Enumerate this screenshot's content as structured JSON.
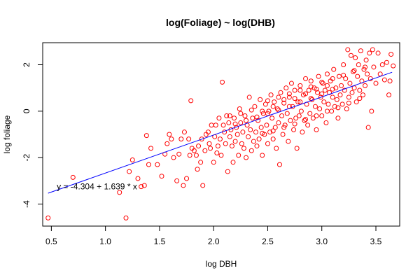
{
  "chart_data": {
    "type": "scatter",
    "title": "log(Foliage) ~ log(DHB)",
    "xlabel": "log DBH",
    "ylabel": "log foliage",
    "xlim": [
      0.42,
      3.72
    ],
    "ylim": [
      -4.95,
      2.95
    ],
    "x_ticks": [
      0.5,
      1.0,
      1.5,
      2.0,
      2.5,
      3.0,
      3.5
    ],
    "x_tick_labels": [
      "0.5",
      "1.0",
      "1.5",
      "2.0",
      "2.5",
      "3.0",
      "3.5"
    ],
    "y_ticks": [
      -4,
      -2,
      0,
      2
    ],
    "y_tick_labels": [
      "-4",
      "-2",
      "0",
      "2"
    ],
    "grid": false,
    "point_color": "#ff0000",
    "line_color": "#0000ff",
    "regression": {
      "intercept": -4.304,
      "slope": 1.639,
      "x_range": [
        0.47,
        3.65
      ],
      "label": "y = -4.304 + 1.639 * x",
      "label_at": [
        0.55,
        -3.25
      ]
    },
    "points": [
      [
        0.47,
        -4.6
      ],
      [
        0.7,
        -2.85
      ],
      [
        1.13,
        -3.5
      ],
      [
        1.19,
        -4.6
      ],
      [
        1.22,
        -2.6
      ],
      [
        1.25,
        -2.1
      ],
      [
        1.3,
        -2.9
      ],
      [
        1.33,
        -3.25
      ],
      [
        1.36,
        -3.2
      ],
      [
        1.38,
        -1.05
      ],
      [
        1.4,
        -2.3
      ],
      [
        1.42,
        -1.6
      ],
      [
        1.48,
        -2.3
      ],
      [
        1.52,
        -2.8
      ],
      [
        1.55,
        -1.85
      ],
      [
        1.57,
        -1.4
      ],
      [
        1.59,
        -1.0
      ],
      [
        1.61,
        -1.2
      ],
      [
        1.63,
        -2.0
      ],
      [
        1.66,
        -3.0
      ],
      [
        1.68,
        -1.85
      ],
      [
        1.7,
        -1.2
      ],
      [
        1.72,
        -3.2
      ],
      [
        1.73,
        -0.9
      ],
      [
        1.75,
        -2.9
      ],
      [
        1.77,
        -1.2
      ],
      [
        1.78,
        -1.9
      ],
      [
        1.79,
        0.45
      ],
      [
        1.8,
        -1.6
      ],
      [
        1.82,
        -1.7
      ],
      [
        1.84,
        -1.9
      ],
      [
        1.85,
        -2.5
      ],
      [
        1.86,
        -1.5
      ],
      [
        1.88,
        -2.2
      ],
      [
        1.89,
        -1.2
      ],
      [
        1.9,
        -3.2
      ],
      [
        1.92,
        -1.7
      ],
      [
        1.93,
        -1.0
      ],
      [
        1.95,
        -0.9
      ],
      [
        1.96,
        -1.4
      ],
      [
        1.97,
        -1.6
      ],
      [
        1.98,
        -0.6
      ],
      [
        2.0,
        -2.2
      ],
      [
        2.01,
        -1.1
      ],
      [
        2.02,
        -0.6
      ],
      [
        2.03,
        -1.8
      ],
      [
        2.04,
        -1.5
      ],
      [
        2.05,
        -0.3
      ],
      [
        2.06,
        -1.2
      ],
      [
        2.07,
        -1.9
      ],
      [
        2.08,
        1.25
      ],
      [
        2.09,
        -0.6
      ],
      [
        2.1,
        -0.9
      ],
      [
        2.11,
        -1.4
      ],
      [
        2.12,
        -0.2
      ],
      [
        2.13,
        -2.6
      ],
      [
        2.14,
        -0.5
      ],
      [
        2.15,
        -1.1
      ],
      [
        2.16,
        -0.8
      ],
      [
        2.17,
        -1.5
      ],
      [
        2.18,
        -2.2
      ],
      [
        2.19,
        -0.3
      ],
      [
        2.2,
        -1.3
      ],
      [
        2.21,
        -0.7
      ],
      [
        2.22,
        -1.0
      ],
      [
        2.23,
        -1.9
      ],
      [
        2.24,
        0.1
      ],
      [
        2.25,
        -0.5
      ],
      [
        2.26,
        -1.4
      ],
      [
        2.27,
        -0.9
      ],
      [
        2.28,
        -1.6
      ],
      [
        2.29,
        -0.2
      ],
      [
        2.3,
        -2.0
      ],
      [
        2.31,
        -0.6
      ],
      [
        2.32,
        -1.1
      ],
      [
        2.33,
        0.6
      ],
      [
        2.34,
        -0.8
      ],
      [
        2.35,
        -1.7
      ],
      [
        2.36,
        -0.3
      ],
      [
        2.37,
        -1.3
      ],
      [
        2.38,
        0.2
      ],
      [
        2.39,
        -0.9
      ],
      [
        2.4,
        -1.5
      ],
      [
        2.41,
        -0.4
      ],
      [
        2.42,
        -1.2
      ],
      [
        2.43,
        0.5
      ],
      [
        2.44,
        -0.7
      ],
      [
        2.45,
        -1.9
      ],
      [
        2.46,
        -0.1
      ],
      [
        2.47,
        -1.0
      ],
      [
        2.48,
        0.3
      ],
      [
        2.49,
        -0.6
      ],
      [
        2.5,
        -1.4
      ],
      [
        2.51,
        0.0
      ],
      [
        2.52,
        -0.9
      ],
      [
        2.53,
        0.7
      ],
      [
        2.54,
        -0.3
      ],
      [
        2.55,
        -1.2
      ],
      [
        2.56,
        0.4
      ],
      [
        2.57,
        -0.7
      ],
      [
        2.58,
        -1.6
      ],
      [
        2.59,
        0.1
      ],
      [
        2.6,
        -0.5
      ],
      [
        2.61,
        -2.3
      ],
      [
        2.62,
        0.8
      ],
      [
        2.63,
        -0.2
      ],
      [
        2.64,
        -1.0
      ],
      [
        2.65,
        0.5
      ],
      [
        2.66,
        -0.6
      ],
      [
        2.67,
        1.0
      ],
      [
        2.68,
        -0.1
      ],
      [
        2.69,
        -1.3
      ],
      [
        2.7,
        0.6
      ],
      [
        2.71,
        -0.4
      ],
      [
        2.72,
        1.2
      ],
      [
        2.73,
        0.2
      ],
      [
        2.74,
        -0.8
      ],
      [
        2.75,
        0.9
      ],
      [
        2.76,
        -0.3
      ],
      [
        2.77,
        -1.6
      ],
      [
        2.78,
        0.4
      ],
      [
        2.79,
        -0.2
      ],
      [
        2.8,
        1.1
      ],
      [
        2.81,
        0.0
      ],
      [
        2.82,
        -0.9
      ],
      [
        2.83,
        0.7
      ],
      [
        2.84,
        -0.4
      ],
      [
        2.85,
        1.4
      ],
      [
        2.86,
        0.3
      ],
      [
        2.87,
        -0.6
      ],
      [
        2.88,
        0.9
      ],
      [
        2.89,
        -0.1
      ],
      [
        2.9,
        1.3
      ],
      [
        2.91,
        0.5
      ],
      [
        2.92,
        -0.3
      ],
      [
        2.93,
        1.0
      ],
      [
        2.94,
        0.2
      ],
      [
        2.95,
        -0.8
      ],
      [
        2.96,
        0.8
      ],
      [
        2.97,
        1.5
      ],
      [
        2.98,
        0.1
      ],
      [
        2.99,
        0.6
      ],
      [
        3.0,
        -0.2
      ],
      [
        3.01,
        1.2
      ],
      [
        3.02,
        0.4
      ],
      [
        3.03,
        0.9
      ],
      [
        3.04,
        -0.5
      ],
      [
        3.05,
        1.6
      ],
      [
        3.06,
        0.3
      ],
      [
        3.07,
        0.8
      ],
      [
        3.08,
        1.3
      ],
      [
        3.09,
        0.0
      ],
      [
        3.1,
        0.6
      ],
      [
        3.11,
        1.8
      ],
      [
        3.12,
        0.2
      ],
      [
        3.13,
        1.0
      ],
      [
        3.14,
        0.5
      ],
      [
        3.15,
        -0.3
      ],
      [
        3.16,
        1.5
      ],
      [
        3.17,
        0.7
      ],
      [
        3.18,
        1.1
      ],
      [
        3.19,
        0.3
      ],
      [
        3.2,
        2.0
      ],
      [
        3.21,
        0.9
      ],
      [
        3.22,
        1.4
      ],
      [
        3.23,
        0.1
      ],
      [
        3.24,
        2.65
      ],
      [
        3.25,
        0.6
      ],
      [
        3.26,
        1.2
      ],
      [
        3.27,
        2.4
      ],
      [
        3.28,
        0.8
      ],
      [
        3.29,
        1.7
      ],
      [
        3.3,
        1.0
      ],
      [
        3.31,
        2.3
      ],
      [
        3.32,
        0.4
      ],
      [
        3.33,
        1.5
      ],
      [
        3.34,
        2.0
      ],
      [
        3.35,
        0.9
      ],
      [
        3.36,
        2.6
      ],
      [
        3.37,
        1.3
      ],
      [
        3.38,
        0.7
      ],
      [
        3.39,
        1.8
      ],
      [
        3.4,
        1.1
      ],
      [
        3.41,
        2.2
      ],
      [
        3.42,
        1.6
      ],
      [
        3.43,
        -0.7
      ],
      [
        3.44,
        2.5
      ],
      [
        3.45,
        1.4
      ],
      [
        3.46,
        0.0
      ],
      [
        3.47,
        2.65
      ],
      [
        3.48,
        1.9
      ],
      [
        3.5,
        1.2
      ],
      [
        3.52,
        2.5
      ],
      [
        3.54,
        1.6
      ],
      [
        3.56,
        2.0
      ],
      [
        3.58,
        1.35
      ],
      [
        3.6,
        2.1
      ],
      [
        3.62,
        0.7
      ],
      [
        3.63,
        1.3
      ],
      [
        3.64,
        2.45
      ],
      [
        3.66,
        1.95
      ],
      [
        2.15,
        -0.2
      ],
      [
        2.25,
        -0.1
      ],
      [
        2.35,
        0.05
      ],
      [
        2.45,
        0.0
      ],
      [
        2.55,
        0.2
      ],
      [
        2.65,
        0.35
      ],
      [
        2.75,
        0.55
      ],
      [
        2.85,
        0.75
      ],
      [
        2.95,
        0.95
      ],
      [
        3.05,
        1.1
      ],
      [
        2.2,
        -0.55
      ],
      [
        2.3,
        -0.4
      ],
      [
        2.4,
        -0.25
      ],
      [
        2.5,
        -0.1
      ],
      [
        2.6,
        0.05
      ],
      [
        2.7,
        0.2
      ],
      [
        2.8,
        0.4
      ],
      [
        2.9,
        0.55
      ],
      [
        3.0,
        0.75
      ],
      [
        3.1,
        0.95
      ],
      [
        2.45,
        -0.95
      ],
      [
        2.55,
        -0.85
      ],
      [
        2.65,
        -0.7
      ],
      [
        2.75,
        -0.55
      ],
      [
        2.85,
        -0.35
      ],
      [
        2.95,
        -0.2
      ],
      [
        3.05,
        0.0
      ],
      [
        3.15,
        0.15
      ],
      [
        3.25,
        0.35
      ],
      [
        3.35,
        0.55
      ],
      [
        2.5,
        0.45
      ],
      [
        2.6,
        0.6
      ],
      [
        2.7,
        0.75
      ],
      [
        2.8,
        0.9
      ],
      [
        2.9,
        1.05
      ],
      [
        3.0,
        1.25
      ],
      [
        3.1,
        1.4
      ],
      [
        3.2,
        1.55
      ],
      [
        3.3,
        1.75
      ],
      [
        3.4,
        1.9
      ]
    ]
  }
}
